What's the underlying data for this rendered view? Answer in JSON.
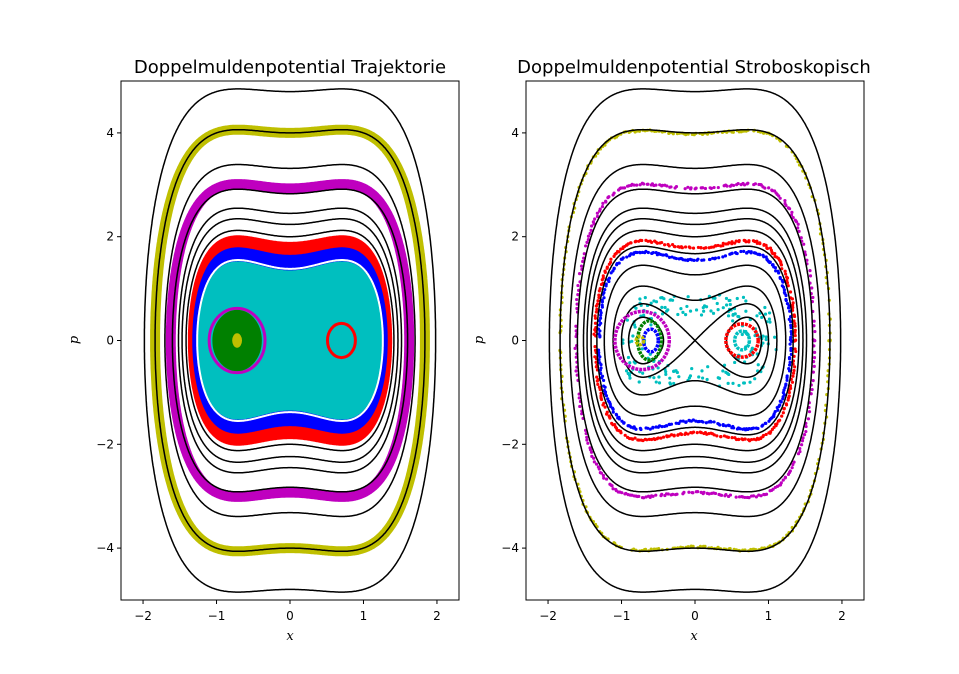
{
  "chart_data": [
    {
      "type": "line",
      "title": "Doppelmuldenpotential Trajektorie",
      "xlabel": "x",
      "ylabel": "p",
      "xlim": [
        -2.3,
        2.3
      ],
      "ylim": [
        -5,
        5
      ],
      "xticks": [
        -2,
        -1,
        0,
        1,
        2
      ],
      "xtick_labels": [
        "−2",
        "−1",
        "0",
        "1",
        "2"
      ],
      "yticks": [
        -4,
        -2,
        0,
        2,
        4
      ],
      "ytick_labels": [
        "−4",
        "−2",
        "0",
        "2",
        "4"
      ],
      "grid": false,
      "legend": "none",
      "energy_contours": {
        "color": "#000000",
        "potential": "V(x) = x^4 - x^2, H = p^2/2 + V(x)",
        "levels": [
          2.0,
          2.5,
          3.0,
          4.0,
          5.5,
          8.0,
          11.5
        ]
      },
      "series": [
        {
          "color": "#bfbf00",
          "kind": "band",
          "p_at_x0": 4.0,
          "width": 0.2
        },
        {
          "color": "#bf00bf",
          "kind": "band",
          "p_at_x0": 2.93,
          "width": 0.2
        },
        {
          "color": "#ff0000",
          "kind": "fill",
          "p_outer_at_x0": 1.9
        },
        {
          "color": "#0000ff",
          "kind": "fill",
          "p_outer_at_x0": 1.65
        },
        {
          "color": "#00bfbf",
          "kind": "fill",
          "p_outer_at_x0": 1.35
        },
        {
          "color": "#bf00bf",
          "kind": "island",
          "center": [
            -0.72,
            0
          ],
          "rx": 0.38,
          "ry": 0.62
        },
        {
          "color": "#008000",
          "kind": "island",
          "center": [
            -0.72,
            0
          ],
          "rx": 0.33,
          "ry": 0.58
        },
        {
          "color": "#bfbf00",
          "kind": "island",
          "center": [
            -0.72,
            0
          ],
          "rx": 0.06,
          "ry": 0.13
        },
        {
          "color": "#ff0000",
          "kind": "island",
          "center": [
            0.7,
            0
          ],
          "rx": 0.19,
          "ry": 0.33
        },
        {
          "color": "#00bfbf",
          "kind": "island",
          "center": [
            0.7,
            0
          ],
          "rx": 0.07,
          "ry": 0.15
        }
      ]
    },
    {
      "type": "scatter",
      "title": "Doppelmuldenpotential Stroboskopisch",
      "xlabel": "x",
      "ylabel": "p",
      "xlim": [
        -2.3,
        2.3
      ],
      "ylim": [
        -5,
        5
      ],
      "xticks": [
        -2,
        -1,
        0,
        1,
        2
      ],
      "xtick_labels": [
        "−2",
        "−1",
        "0",
        "1",
        "2"
      ],
      "yticks": [
        -4,
        -2,
        0,
        2,
        4
      ],
      "ytick_labels": [
        "−4",
        "−2",
        "0",
        "2",
        "4"
      ],
      "grid": false,
      "legend": "none",
      "energy_contours": {
        "color": "#000000",
        "potential": "V(x) = x^4 - x^2, H = p^2/2 + V(x)",
        "levels": [
          -0.15,
          0.0,
          0.3,
          0.8,
          1.4,
          2.0,
          2.5,
          3.0,
          4.0,
          5.5,
          8.0,
          11.5
        ]
      },
      "series": [
        {
          "color": "#bfbf00",
          "kind": "ring",
          "p_at_x0": 3.98
        },
        {
          "color": "#bf00bf",
          "kind": "ring",
          "p_at_x0": 2.93
        },
        {
          "color": "#ff0000",
          "kind": "ring",
          "p_at_x0": 1.78
        },
        {
          "color": "#0000ff",
          "kind": "ring",
          "p_at_x0": 1.55
        },
        {
          "color": "#00bfbf",
          "kind": "chaotic",
          "x_range": [
            -1.2,
            1.2
          ],
          "p_range": [
            -1.3,
            1.3
          ]
        },
        {
          "color": "#bf00bf",
          "kind": "island",
          "center": [
            -0.72,
            0
          ],
          "rx": 0.37,
          "ry": 0.56
        },
        {
          "color": "#008000",
          "kind": "island",
          "center": [
            -0.62,
            0
          ],
          "rx": 0.16,
          "ry": 0.38
        },
        {
          "color": "#0000ff",
          "kind": "island",
          "center": [
            -0.6,
            0
          ],
          "rx": 0.1,
          "ry": 0.22
        },
        {
          "color": "#bfbf00",
          "kind": "island",
          "center": [
            -0.75,
            0
          ],
          "rx": 0.05,
          "ry": 0.08
        },
        {
          "color": "#ff0000",
          "kind": "island",
          "center": [
            0.64,
            0
          ],
          "rx": 0.22,
          "ry": 0.32
        },
        {
          "color": "#00bfbf",
          "kind": "island",
          "center": [
            0.64,
            0
          ],
          "rx": 0.1,
          "ry": 0.18
        }
      ]
    }
  ]
}
